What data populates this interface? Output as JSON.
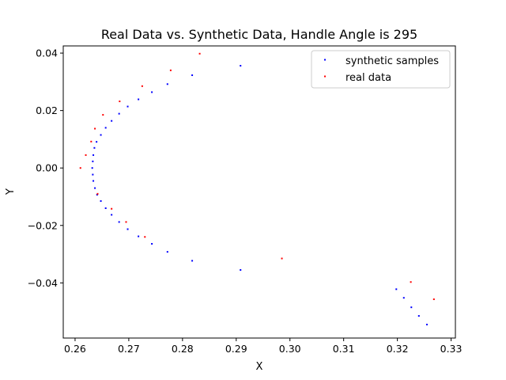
{
  "chart_data": {
    "type": "scatter",
    "title": "Real Data vs. Synthetic Data, Handle Angle is 295",
    "xlabel": "X",
    "ylabel": "Y",
    "xlim": [
      0.2578,
      0.3308
    ],
    "ylim": [
      -0.0592,
      0.0425
    ],
    "xticks": [
      0.26,
      0.27,
      0.28,
      0.29,
      0.3,
      0.31,
      0.32,
      0.33
    ],
    "xtick_labels": [
      "0.26",
      "0.27",
      "0.28",
      "0.29",
      "0.30",
      "0.31",
      "0.32",
      "0.33"
    ],
    "yticks": [
      -0.04,
      -0.02,
      0.0,
      0.02,
      0.04
    ],
    "ytick_labels": [
      "−0.04",
      "−0.02",
      "0.00",
      "0.02",
      "0.04"
    ],
    "grid": false,
    "legend_position": "top-right",
    "series": [
      {
        "name": "synthetic samples",
        "color": "#0000ff",
        "points": [
          [
            0.2908,
            0.0356
          ],
          [
            0.2818,
            0.0323
          ],
          [
            0.2772,
            0.0292
          ],
          [
            0.2743,
            0.0264
          ],
          [
            0.2718,
            0.0239
          ],
          [
            0.2698,
            0.0214
          ],
          [
            0.2682,
            0.0189
          ],
          [
            0.2668,
            0.0164
          ],
          [
            0.2657,
            0.014
          ],
          [
            0.2648,
            0.0115
          ],
          [
            0.264,
            0.0091
          ],
          [
            0.2636,
            0.007
          ],
          [
            0.2634,
            0.0045
          ],
          [
            0.2633,
            0.0023
          ],
          [
            0.2632,
            0.0
          ],
          [
            0.2633,
            -0.0023
          ],
          [
            0.2634,
            -0.0045
          ],
          [
            0.2637,
            -0.007
          ],
          [
            0.2641,
            -0.0093
          ],
          [
            0.2648,
            -0.0115
          ],
          [
            0.2657,
            -0.014
          ],
          [
            0.2668,
            -0.0163
          ],
          [
            0.2682,
            -0.0188
          ],
          [
            0.2698,
            -0.0213
          ],
          [
            0.2718,
            -0.0238
          ],
          [
            0.2743,
            -0.0264
          ],
          [
            0.2772,
            -0.0292
          ],
          [
            0.2818,
            -0.0323
          ],
          [
            0.2908,
            -0.0355
          ],
          [
            0.3198,
            -0.0422
          ],
          [
            0.3212,
            -0.0452
          ],
          [
            0.3226,
            -0.0485
          ],
          [
            0.324,
            -0.0515
          ],
          [
            0.3255,
            -0.0545
          ]
        ]
      },
      {
        "name": "real data",
        "color": "#ff0000",
        "points": [
          [
            0.2832,
            0.0398
          ],
          [
            0.2778,
            0.034
          ],
          [
            0.2725,
            0.0285
          ],
          [
            0.2683,
            0.0232
          ],
          [
            0.2652,
            0.0185
          ],
          [
            0.2637,
            0.0137
          ],
          [
            0.263,
            0.0092
          ],
          [
            0.262,
            0.0045
          ],
          [
            0.261,
            0.0
          ],
          [
            0.2642,
            -0.009
          ],
          [
            0.2668,
            -0.0142
          ],
          [
            0.2695,
            -0.0188
          ],
          [
            0.273,
            -0.024
          ],
          [
            0.2985,
            -0.0315
          ],
          [
            0.3225,
            -0.0397
          ],
          [
            0.3268,
            -0.0457
          ]
        ]
      }
    ]
  }
}
